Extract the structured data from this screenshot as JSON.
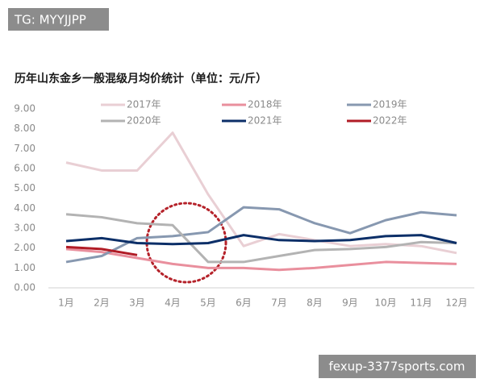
{
  "chart_data": {
    "type": "line",
    "title": "历年山东金乡一般混级月均价统计（单位：元/斤）",
    "categories": [
      "1月",
      "2月",
      "3月",
      "4月",
      "5月",
      "6月",
      "7月",
      "8月",
      "9月",
      "10月",
      "11月",
      "12月"
    ],
    "series": [
      {
        "name": "2017年",
        "color": "#e9cfd4",
        "values": [
          6.3,
          5.9,
          5.9,
          7.8,
          4.7,
          2.1,
          2.7,
          2.4,
          2.1,
          2.2,
          2.1,
          1.75
        ]
      },
      {
        "name": "2018年",
        "color": "#e98f9d",
        "values": [
          1.95,
          1.8,
          1.5,
          1.2,
          1.0,
          1.0,
          0.9,
          1.0,
          1.15,
          1.3,
          1.25,
          1.2
        ]
      },
      {
        "name": "2019年",
        "color": "#8798b0",
        "values": [
          1.3,
          1.6,
          2.5,
          2.6,
          2.8,
          4.05,
          3.95,
          3.25,
          2.75,
          3.4,
          3.8,
          3.65
        ]
      },
      {
        "name": "2020年",
        "color": "#b3b3b3",
        "values": [
          3.7,
          3.55,
          3.25,
          3.15,
          1.3,
          1.3,
          1.6,
          1.9,
          1.95,
          2.05,
          2.3,
          2.25
        ]
      },
      {
        "name": "2021年",
        "color": "#0c2f68",
        "values": [
          2.35,
          2.5,
          2.25,
          2.2,
          2.25,
          2.65,
          2.4,
          2.35,
          2.4,
          2.6,
          2.65,
          2.25
        ]
      },
      {
        "name": "2022年",
        "color": "#b11c26",
        "values": [
          2.05,
          1.95,
          1.65,
          null,
          null,
          null,
          null,
          null,
          null,
          null,
          null,
          null
        ]
      }
    ],
    "ylim": [
      0,
      9
    ],
    "yticks": [
      {
        "value": 0,
        "label": "0.00"
      },
      {
        "value": 1,
        "label": "1.00"
      },
      {
        "value": 2,
        "label": "2.00"
      },
      {
        "value": 3,
        "label": "3.00"
      },
      {
        "value": 4,
        "label": "4.00"
      },
      {
        "value": 5,
        "label": "5.00"
      },
      {
        "value": 6,
        "label": "6.00"
      },
      {
        "value": 7,
        "label": "7.00"
      },
      {
        "value": 8,
        "label": "8.00"
      },
      {
        "value": 9,
        "label": "9.00"
      }
    ],
    "grid": false
  },
  "overlay": {
    "tag": "TG: MYYJJPP",
    "watermark": "fexup-3377sports.com"
  }
}
